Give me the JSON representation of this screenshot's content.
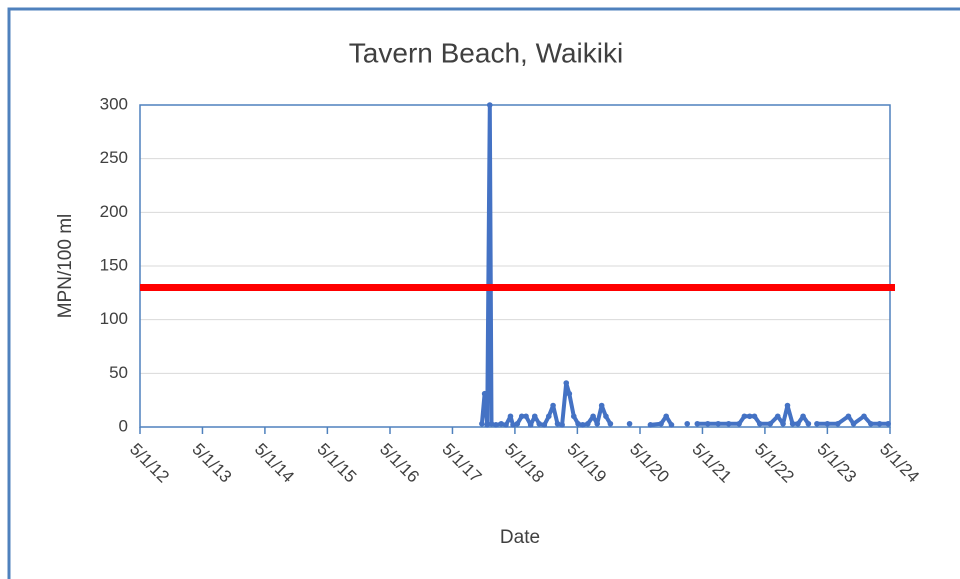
{
  "chart_data": {
    "type": "line",
    "title": "Tavern Beach, Waikiki",
    "xlabel": "Date",
    "ylabel": "MPN/100 ml",
    "ylim": [
      0,
      300
    ],
    "yticks": [
      0,
      50,
      100,
      150,
      200,
      250,
      300
    ],
    "xlim": [
      "2012-05-01",
      "2024-05-01"
    ],
    "xticks": [
      {
        "value": "2012-05-01",
        "label": "5/1/12"
      },
      {
        "value": "2013-05-01",
        "label": "5/1/13"
      },
      {
        "value": "2014-05-01",
        "label": "5/1/14"
      },
      {
        "value": "2015-05-01",
        "label": "5/1/15"
      },
      {
        "value": "2016-05-01",
        "label": "5/1/16"
      },
      {
        "value": "2017-05-01",
        "label": "5/1/17"
      },
      {
        "value": "2018-05-01",
        "label": "5/1/18"
      },
      {
        "value": "2019-05-01",
        "label": "5/1/19"
      },
      {
        "value": "2020-05-01",
        "label": "5/1/20"
      },
      {
        "value": "2021-05-01",
        "label": "5/1/21"
      },
      {
        "value": "2022-05-01",
        "label": "5/1/22"
      },
      {
        "value": "2023-05-01",
        "label": "5/1/23"
      },
      {
        "value": "2024-05-01",
        "label": "5/1/24"
      }
    ],
    "grid": true,
    "threshold": {
      "value": 130,
      "color": "#ff0000"
    },
    "series": [
      {
        "color": "#4472c4",
        "x": [
          "2017-10-20",
          "2017-11-05",
          "2017-11-20",
          "2017-12-05",
          "2017-12-15",
          "2018-01-10",
          "2018-02-10",
          "2018-03-10",
          "2018-04-05",
          "2018-04-20",
          "2018-05-15",
          "2018-06-10",
          "2018-07-05",
          "2018-08-01",
          "2018-08-25",
          "2018-09-20",
          "2018-10-20",
          "2018-11-15",
          "2018-12-10",
          "2019-01-05",
          "2019-02-01",
          "2019-02-25",
          "2019-03-15",
          "2019-04-10",
          "2019-05-05",
          "2019-06-01",
          "2019-07-01",
          "2019-08-01",
          "2019-08-25",
          "2019-09-20",
          "2019-10-15",
          "2019-11-10",
          "2020-01-01",
          "2020-03-01",
          "2020-05-01",
          "2020-07-01",
          "2020-09-01",
          "2020-10-01",
          "2020-11-01",
          "2020-12-15",
          "2021-02-01",
          "2021-03-01",
          "2021-04-01",
          "2021-06-01",
          "2021-08-01",
          "2021-10-01",
          "2021-12-01",
          "2022-01-01",
          "2022-02-01",
          "2022-03-01",
          "2022-04-01",
          "2022-06-01",
          "2022-07-15",
          "2022-08-15",
          "2022-09-10",
          "2022-10-10",
          "2022-11-10",
          "2022-12-10",
          "2023-01-10",
          "2023-02-01",
          "2023-03-01",
          "2023-05-01",
          "2023-07-01",
          "2023-09-01",
          "2023-10-01",
          "2023-12-01",
          "2024-01-10",
          "2024-03-01",
          "2024-04-20"
        ],
        "values": [
          3,
          31,
          2,
          300,
          3,
          2,
          3,
          2,
          10,
          2,
          3,
          10,
          10,
          2,
          10,
          3,
          2,
          10,
          20,
          3,
          2,
          41,
          31,
          10,
          3,
          2,
          3,
          10,
          3,
          20,
          10,
          3,
          null,
          3,
          null,
          2,
          3,
          10,
          2,
          null,
          3,
          null,
          3,
          3,
          3,
          3,
          3,
          10,
          10,
          10,
          3,
          3,
          10,
          3,
          20,
          3,
          3,
          10,
          3,
          null,
          3,
          3,
          3,
          10,
          3,
          10,
          3,
          3,
          3
        ]
      }
    ]
  }
}
